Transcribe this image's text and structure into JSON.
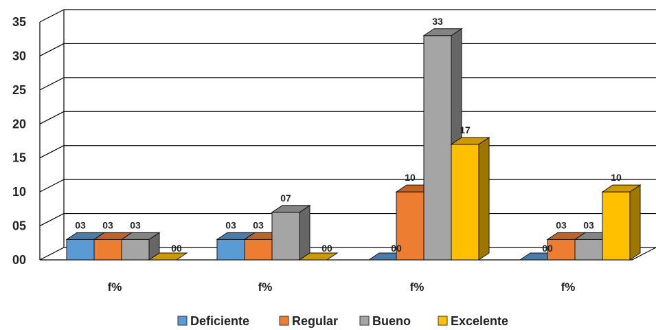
{
  "chart_data": {
    "type": "bar",
    "categories": [
      "f%",
      "f%",
      "f%",
      "f%"
    ],
    "series": [
      {
        "name": "Deficiente",
        "values": [
          3,
          3,
          0,
          0
        ],
        "labels": [
          "03",
          "03",
          "00",
          "00"
        ],
        "color": "#5b9bd5"
      },
      {
        "name": "Regular",
        "values": [
          3,
          3,
          10,
          3
        ],
        "labels": [
          "03",
          "03",
          "10",
          "03"
        ],
        "color": "#ed7d31"
      },
      {
        "name": "Bueno",
        "values": [
          3,
          7,
          33,
          3
        ],
        "labels": [
          "03",
          "07",
          "33",
          "03"
        ],
        "color": "#a5a5a5"
      },
      {
        "name": "Excelente",
        "values": [
          0,
          0,
          17,
          10
        ],
        "labels": [
          "00",
          "00",
          "17",
          "10"
        ],
        "color": "#ffc000"
      }
    ],
    "yticks": [
      "00",
      "05",
      "10",
      "15",
      "20",
      "25",
      "30",
      "35"
    ],
    "ylim": [
      0,
      35
    ],
    "title": "",
    "xlabel": "",
    "ylabel": "",
    "grid": true,
    "legend": "bottom",
    "style": "3d-clustered-column"
  }
}
